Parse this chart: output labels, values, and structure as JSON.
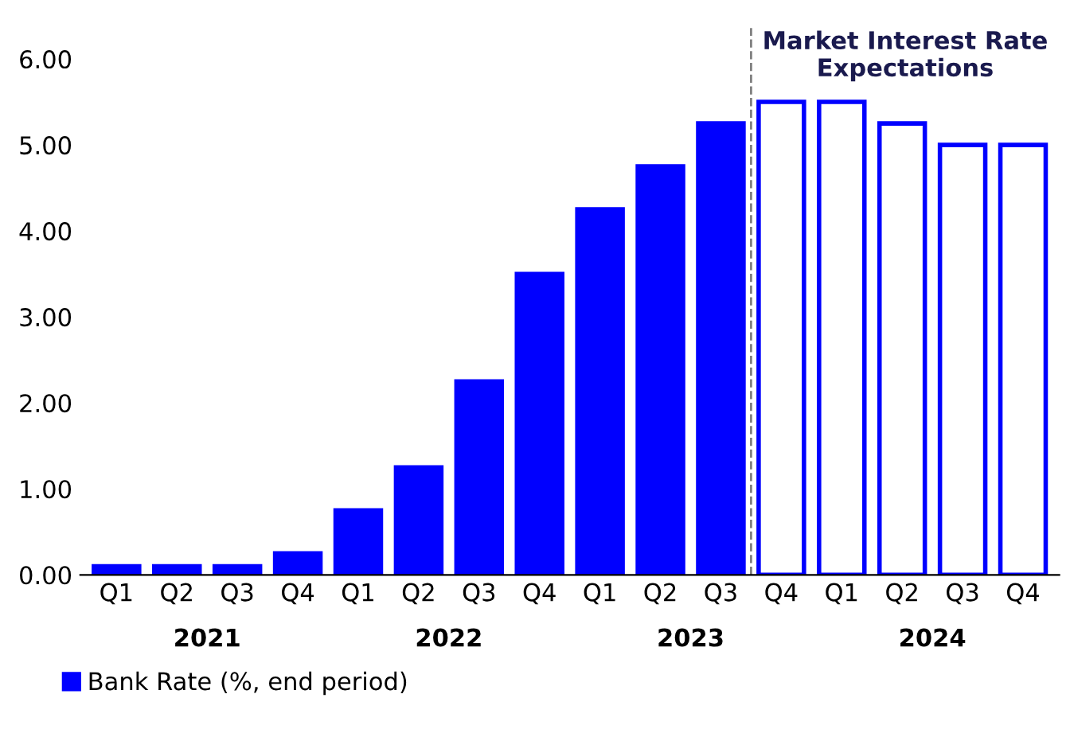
{
  "chart_data": {
    "type": "bar",
    "categories": [
      "Q1",
      "Q2",
      "Q3",
      "Q4",
      "Q1",
      "Q2",
      "Q3",
      "Q4",
      "Q1",
      "Q2",
      "Q3",
      "Q4",
      "Q1",
      "Q2",
      "Q3",
      "Q4"
    ],
    "series": [
      {
        "name": "Bank Rate (%, end period)",
        "color": "#0000ff",
        "values": [
          0.1,
          0.1,
          0.1,
          0.25,
          0.75,
          1.25,
          2.25,
          3.5,
          4.25,
          4.75,
          5.25,
          null,
          null,
          null,
          null,
          null
        ]
      },
      {
        "color": "#0000ff",
        "values": [
          null,
          null,
          null,
          null,
          null,
          null,
          null,
          null,
          null,
          null,
          null,
          5.5,
          5.5,
          5.25,
          5.0,
          5.0
        ]
      }
    ],
    "ylim": [
      0,
      6
    ],
    "yticks": [
      {
        "value": 0,
        "label": "0.00"
      },
      {
        "value": 1,
        "label": "1.00"
      },
      {
        "value": 2,
        "label": "2.00"
      },
      {
        "value": 3,
        "label": "3.00"
      },
      {
        "value": 4,
        "label": "4.00"
      },
      {
        "value": 5,
        "label": "5.00"
      },
      {
        "value": 6,
        "label": "6.00"
      }
    ],
    "annotations": [
      "Market Interest Rate\nExpectations",
      "2021",
      "2022",
      "2023",
      "2024"
    ],
    "grid": false,
    "legend": "bottom left"
  }
}
